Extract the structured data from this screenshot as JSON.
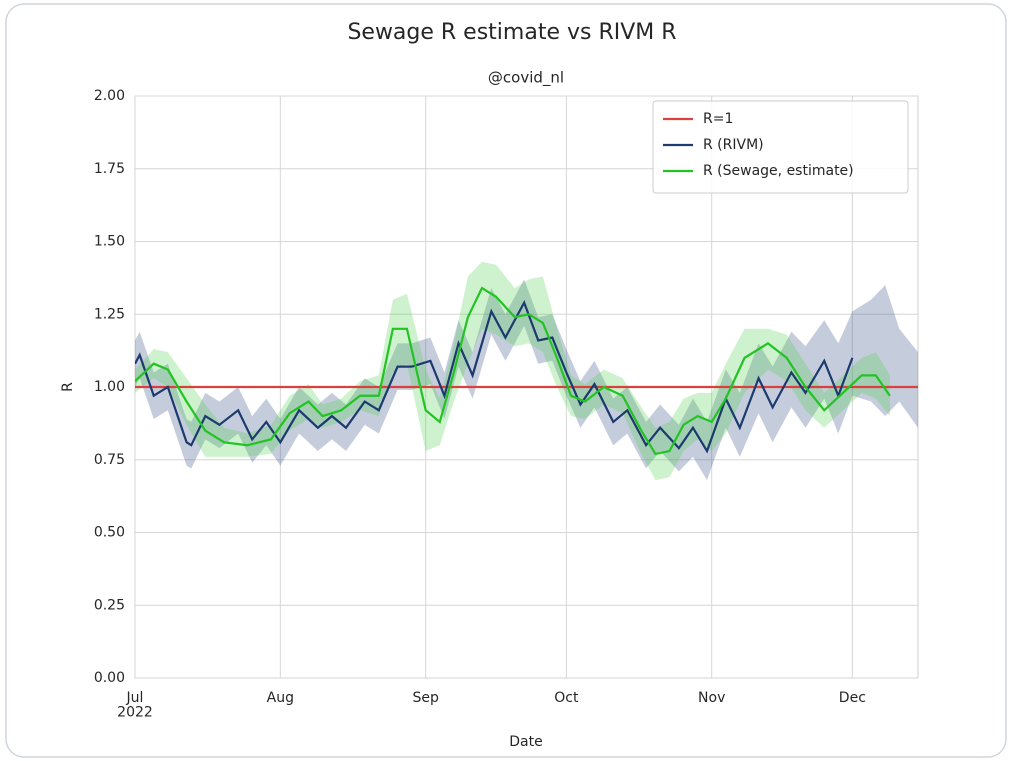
{
  "chart_data": {
    "type": "line",
    "title": "Sewage R estimate vs RIVM R",
    "subtitle": "@covid_nl",
    "x_label": "Date",
    "y_label": "R",
    "xlim": [
      "2022-07-01",
      "2022-12-15"
    ],
    "xticks": [
      {
        "value": "2022-07-01",
        "label": "Jul\n2022"
      },
      {
        "value": "2022-08-01",
        "label": "Aug"
      },
      {
        "value": "2022-09-01",
        "label": "Sep"
      },
      {
        "value": "2022-10-01",
        "label": "Oct"
      },
      {
        "value": "2022-11-01",
        "label": "Nov"
      },
      {
        "value": "2022-12-01",
        "label": "Dec"
      }
    ],
    "ylim": [
      0,
      2
    ],
    "yticks": [
      {
        "value": 0,
        "label": "0.00"
      },
      {
        "value": 0.25,
        "label": "0.25"
      },
      {
        "value": 0.5,
        "label": "0.50"
      },
      {
        "value": 0.75,
        "label": "0.75"
      },
      {
        "value": 1,
        "label": "1.00"
      },
      {
        "value": 1.25,
        "label": "1.25"
      },
      {
        "value": 1.5,
        "label": "1.50"
      },
      {
        "value": 1.75,
        "label": "1.75"
      },
      {
        "value": 2,
        "label": "2.00"
      }
    ],
    "grid": true,
    "legend": "upper right",
    "series": [
      {
        "name": "R=1",
        "color": "#d9413f",
        "x": [
          "2022-07-01",
          "2022-12-15"
        ],
        "values": [
          1,
          1
        ]
      },
      {
        "name": "R (RIVM)",
        "color": "#1c3a6e",
        "band_color": "#2d4a85",
        "x": [
          "2022-07-01",
          "2022-07-02",
          "2022-07-05",
          "2022-07-08",
          "2022-07-12",
          "2022-07-13",
          "2022-07-16",
          "2022-07-19",
          "2022-07-23",
          "2022-07-26",
          "2022-07-29",
          "2022-08-01",
          "2022-08-05",
          "2022-08-09",
          "2022-08-12",
          "2022-08-15",
          "2022-08-19",
          "2022-08-22",
          "2022-08-26",
          "2022-08-29",
          "2022-09-02",
          "2022-09-05",
          "2022-09-08",
          "2022-09-11",
          "2022-09-15",
          "2022-09-18",
          "2022-09-22",
          "2022-09-25",
          "2022-09-28",
          "2022-10-01",
          "2022-10-04",
          "2022-10-07",
          "2022-10-11",
          "2022-10-14",
          "2022-10-18",
          "2022-10-21",
          "2022-10-25",
          "2022-10-28",
          "2022-10-31",
          "2022-11-04",
          "2022-11-07",
          "2022-11-11",
          "2022-11-14",
          "2022-11-18",
          "2022-11-21",
          "2022-11-25",
          "2022-11-28",
          "2022-12-01",
          "2022-12-05",
          "2022-12-08",
          "2022-12-11",
          "2022-12-15"
        ],
        "values": [
          1.08,
          1.11,
          0.97,
          1.0,
          0.81,
          0.8,
          0.9,
          0.87,
          0.92,
          0.82,
          0.88,
          0.81,
          0.92,
          0.86,
          0.9,
          0.86,
          0.95,
          0.92,
          1.07,
          1.07,
          1.09,
          0.97,
          1.15,
          1.04,
          1.26,
          1.17,
          1.29,
          1.16,
          1.17,
          1.05,
          0.94,
          1.01,
          0.88,
          0.92,
          0.8,
          0.86,
          0.79,
          0.86,
          0.78,
          0.96,
          0.86,
          1.03,
          0.93,
          1.05,
          0.98,
          1.09,
          0.97,
          1.1,
          null,
          null,
          null,
          null
        ],
        "lower": [
          1.0,
          1.03,
          0.89,
          0.92,
          0.73,
          0.72,
          0.82,
          0.79,
          0.84,
          0.74,
          0.8,
          0.73,
          0.84,
          0.78,
          0.82,
          0.78,
          0.87,
          0.84,
          0.99,
          0.99,
          1.01,
          0.89,
          1.07,
          0.96,
          1.18,
          1.09,
          1.21,
          1.08,
          1.09,
          0.97,
          0.86,
          0.93,
          0.8,
          0.84,
          0.72,
          0.78,
          0.71,
          0.76,
          0.68,
          0.86,
          0.76,
          0.91,
          0.81,
          0.93,
          0.86,
          0.96,
          0.84,
          0.97,
          0.95,
          0.9,
          0.95,
          0.86
        ],
        "upper": [
          1.16,
          1.19,
          1.05,
          1.08,
          0.89,
          0.88,
          0.98,
          0.95,
          1.0,
          0.9,
          0.96,
          0.89,
          1.0,
          0.94,
          0.98,
          0.94,
          1.03,
          1.0,
          1.15,
          1.15,
          1.17,
          1.05,
          1.23,
          1.12,
          1.34,
          1.25,
          1.37,
          1.24,
          1.25,
          1.13,
          1.02,
          1.09,
          0.96,
          1.0,
          0.88,
          0.94,
          0.87,
          0.96,
          0.88,
          1.06,
          0.98,
          1.15,
          1.07,
          1.19,
          1.14,
          1.23,
          1.15,
          1.26,
          1.3,
          1.35,
          1.2,
          1.12
        ]
      },
      {
        "name": "R (Sewage, estimate)",
        "color": "#22c322",
        "band_color": "#4cd24c",
        "x": [
          "2022-07-01",
          "2022-07-05",
          "2022-07-08",
          "2022-07-12",
          "2022-07-16",
          "2022-07-20",
          "2022-07-25",
          "2022-07-30",
          "2022-08-03",
          "2022-08-07",
          "2022-08-10",
          "2022-08-14",
          "2022-08-18",
          "2022-08-22",
          "2022-08-25",
          "2022-08-28",
          "2022-09-01",
          "2022-09-04",
          "2022-09-07",
          "2022-09-10",
          "2022-09-13",
          "2022-09-16",
          "2022-09-20",
          "2022-09-23",
          "2022-09-26",
          "2022-09-29",
          "2022-10-02",
          "2022-10-05",
          "2022-10-09",
          "2022-10-13",
          "2022-10-17",
          "2022-10-20",
          "2022-10-23",
          "2022-10-26",
          "2022-10-29",
          "2022-11-01",
          "2022-11-04",
          "2022-11-08",
          "2022-11-13",
          "2022-11-17",
          "2022-11-21",
          "2022-11-25",
          "2022-11-29",
          "2022-12-03",
          "2022-12-06",
          "2022-12-09"
        ],
        "values": [
          1.02,
          1.08,
          1.06,
          0.95,
          0.85,
          0.81,
          0.8,
          0.82,
          0.91,
          0.95,
          0.9,
          0.92,
          0.97,
          0.97,
          1.2,
          1.2,
          0.92,
          0.88,
          1.05,
          1.24,
          1.34,
          1.31,
          1.24,
          1.25,
          1.22,
          1.1,
          0.97,
          0.95,
          1.0,
          0.97,
          0.85,
          0.77,
          0.78,
          0.87,
          0.9,
          0.88,
          0.96,
          1.1,
          1.15,
          1.1,
          1.0,
          0.92,
          0.98,
          1.04,
          1.04,
          0.97
        ],
        "lower": [
          0.98,
          1.03,
          1.0,
          0.87,
          0.76,
          0.76,
          0.76,
          0.77,
          0.85,
          0.89,
          0.86,
          0.88,
          0.92,
          0.9,
          1.05,
          1.08,
          0.78,
          0.8,
          0.95,
          1.08,
          1.2,
          1.18,
          1.14,
          1.15,
          1.12,
          1.0,
          0.9,
          0.89,
          0.94,
          0.91,
          0.77,
          0.68,
          0.69,
          0.78,
          0.82,
          0.78,
          0.84,
          0.98,
          1.06,
          1.02,
          0.92,
          0.86,
          0.92,
          0.98,
          0.96,
          0.9
        ],
        "upper": [
          1.06,
          1.13,
          1.12,
          1.03,
          0.94,
          0.86,
          0.84,
          0.87,
          0.97,
          1.01,
          0.94,
          0.96,
          1.02,
          1.04,
          1.3,
          1.32,
          1.06,
          0.96,
          1.15,
          1.38,
          1.43,
          1.42,
          1.34,
          1.37,
          1.38,
          1.2,
          1.04,
          1.01,
          1.06,
          1.03,
          0.93,
          0.86,
          0.88,
          0.96,
          0.98,
          0.98,
          1.08,
          1.2,
          1.2,
          1.18,
          1.08,
          0.98,
          1.04,
          1.1,
          1.12,
          1.04
        ]
      }
    ]
  }
}
